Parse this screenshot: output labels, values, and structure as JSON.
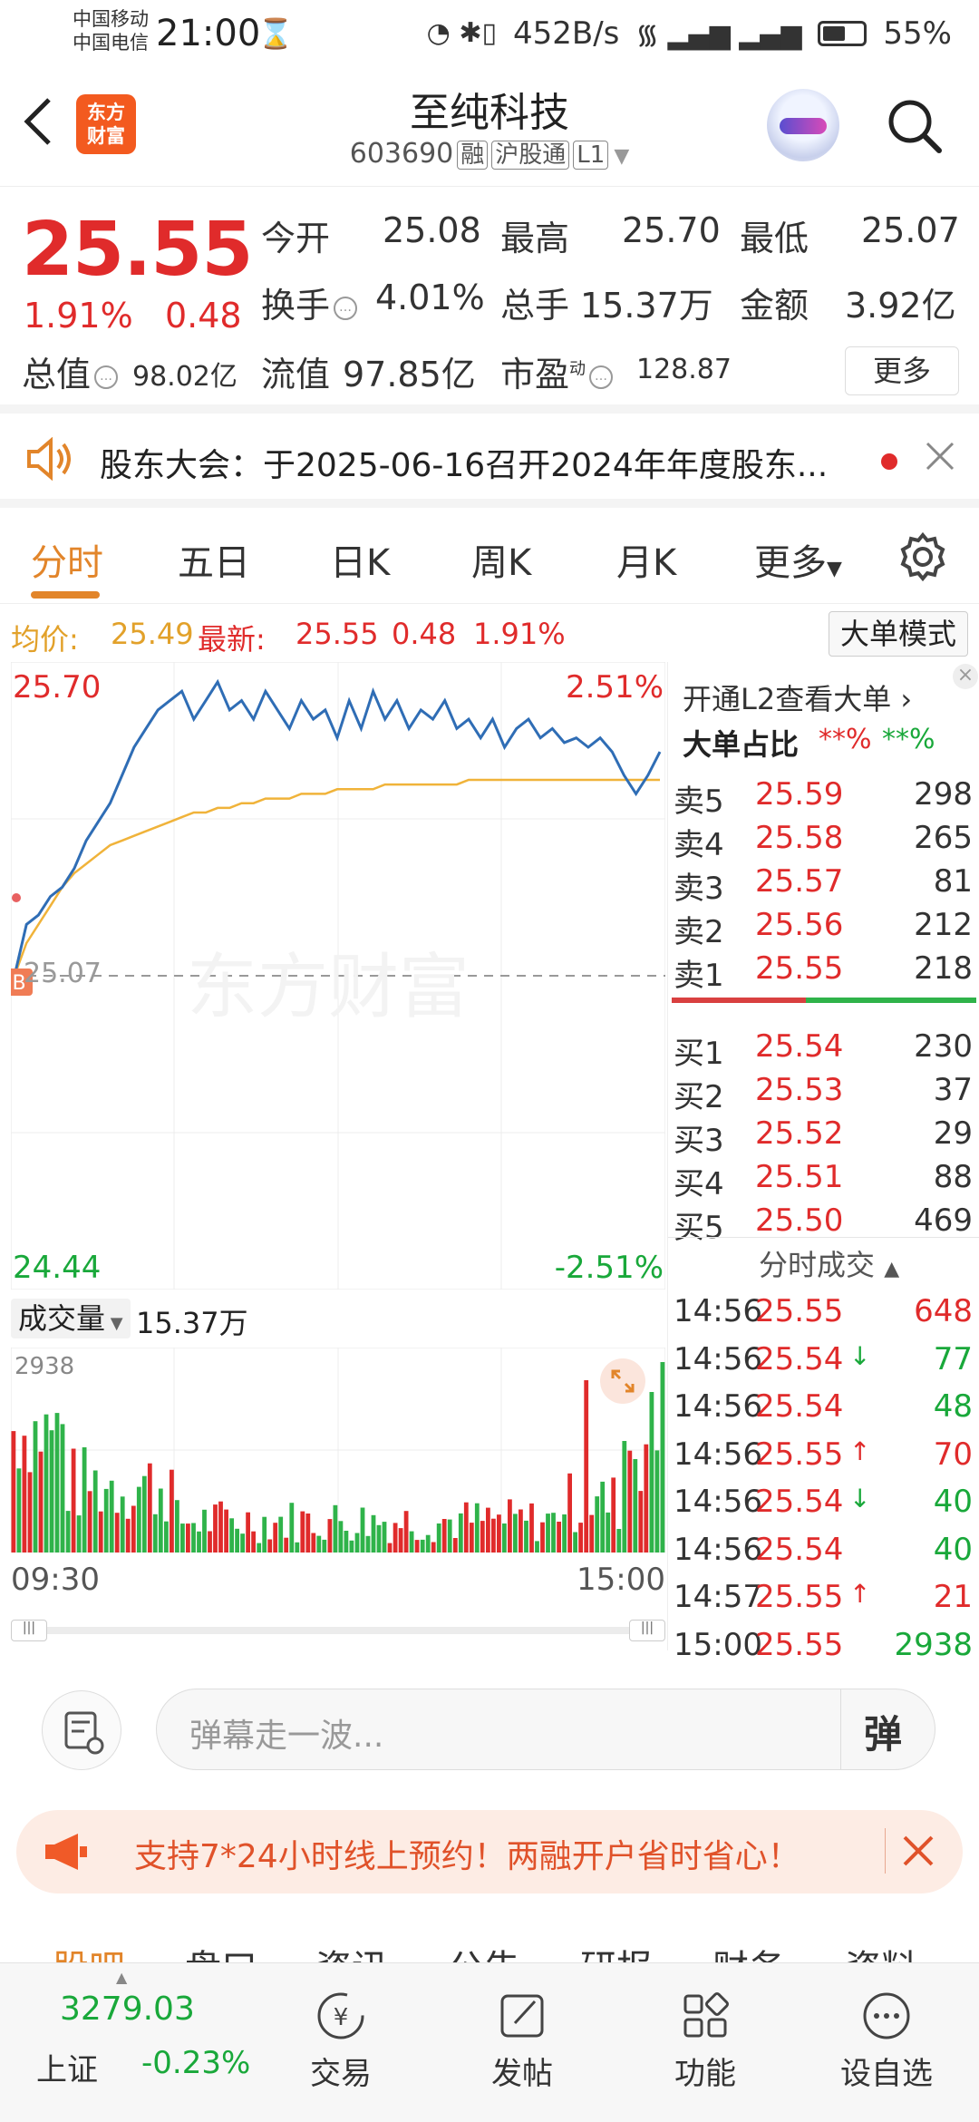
{
  "status_bar": {
    "carrier1": "中国移动",
    "carrier2": "中国电信",
    "time": "21:00",
    "speed": "452B/s",
    "battery": "55%"
  },
  "header": {
    "logo_line1": "东方",
    "logo_line2": "财富",
    "title": "至纯科技",
    "code": "603690",
    "tags": [
      "融",
      "沪股通",
      "L1"
    ]
  },
  "quote": {
    "price": "25.55",
    "pct": "1.91%",
    "change": "0.48",
    "open_label": "今开",
    "open": "25.08",
    "high_label": "最高",
    "high": "25.70",
    "low_label": "最低",
    "low": "25.07",
    "turnover_label": "换手",
    "turnover": "4.01%",
    "volume_label": "总手",
    "volume": "15.37万",
    "amount_label": "金额",
    "amount": "3.92亿",
    "mcap_label": "总值",
    "mcap": "98.02亿",
    "float_label": "流值",
    "float": "97.85亿",
    "pe_label": "市盈",
    "pe_sup": "动",
    "pe": "128.87",
    "more": "更多"
  },
  "notice": {
    "text": "股东大会：于2025-06-16召开2024年年度股东..."
  },
  "tabs": [
    "分时",
    "五日",
    "日K",
    "周K",
    "月K",
    "更多"
  ],
  "avg_line": {
    "avg_label": "均价:",
    "avg": "25.49",
    "latest_label": "最新:",
    "latest": "25.55",
    "change": "0.48",
    "pct": "1.91%",
    "mode_button": "大单模式"
  },
  "chart_labels": {
    "top_price": "25.70",
    "top_pct": "2.51%",
    "bottom_price": "24.44",
    "bottom_pct": "-2.51%",
    "ref_price": "25.07",
    "watermark": "东方财富",
    "vol_selector": "成交量",
    "vol_total": "15.37万",
    "vol_max": "2938",
    "x_start": "09:30",
    "x_end": "15:00"
  },
  "chart_data": {
    "type": "line",
    "x_range": [
      "09:30",
      "15:00"
    ],
    "ylim": [
      24.44,
      25.7
    ],
    "pct_range": [
      "-2.51%",
      "2.51%"
    ],
    "prev_close": 25.07,
    "series": [
      {
        "values": [
          25.07,
          25.18,
          25.2,
          25.24,
          25.26,
          25.3,
          25.36,
          25.4,
          25.44,
          25.5,
          25.56,
          25.6,
          25.64,
          25.66,
          25.68,
          25.62,
          25.66,
          25.7,
          25.64,
          25.66,
          25.62,
          25.68,
          25.64,
          25.6,
          25.66,
          25.62,
          25.64,
          25.58,
          25.66,
          25.6,
          25.68,
          25.62,
          25.66,
          25.6,
          25.64,
          25.62,
          25.66,
          25.6,
          25.62,
          25.58,
          25.62,
          25.56,
          25.6,
          25.62,
          25.58,
          25.6,
          25.57,
          25.58,
          25.56,
          25.58,
          25.55,
          25.5,
          25.46,
          25.5,
          25.55
        ]
      },
      {
        "values": [
          25.07,
          25.14,
          25.18,
          25.22,
          25.26,
          25.29,
          25.31,
          25.33,
          25.35,
          25.36,
          25.37,
          25.38,
          25.39,
          25.4,
          25.41,
          25.42,
          25.42,
          25.43,
          25.43,
          25.44,
          25.44,
          25.45,
          25.45,
          25.45,
          25.46,
          25.46,
          25.46,
          25.47,
          25.47,
          25.47,
          25.47,
          25.48,
          25.48,
          25.48,
          25.48,
          25.48,
          25.48,
          25.48,
          25.49,
          25.49,
          25.49,
          25.49,
          25.49,
          25.49,
          25.49,
          25.49,
          25.49,
          25.49,
          25.49,
          25.49,
          25.49,
          25.49,
          25.49,
          25.49,
          25.49
        ]
      }
    ]
  },
  "panel": {
    "l2_link": "开通L2查看大单",
    "big_ratio_label": "大单占比",
    "big_ratio_red": "**%",
    "big_ratio_green": "**%",
    "asks": [
      {
        "label": "卖5",
        "price": "25.59",
        "vol": "298"
      },
      {
        "label": "卖4",
        "price": "25.58",
        "vol": "265"
      },
      {
        "label": "卖3",
        "price": "25.57",
        "vol": "81"
      },
      {
        "label": "卖2",
        "price": "25.56",
        "vol": "212"
      },
      {
        "label": "卖1",
        "price": "25.55",
        "vol": "218"
      }
    ],
    "bids": [
      {
        "label": "买1",
        "price": "25.54",
        "vol": "230"
      },
      {
        "label": "买2",
        "price": "25.53",
        "vol": "37"
      },
      {
        "label": "买3",
        "price": "25.52",
        "vol": "29"
      },
      {
        "label": "买4",
        "price": "25.51",
        "vol": "88"
      },
      {
        "label": "买5",
        "price": "25.50",
        "vol": "469"
      }
    ],
    "trades_title": "分时成交",
    "trades": [
      {
        "time": "14:56",
        "price": "25.55",
        "arrow": "",
        "vol": "648",
        "color": "red"
      },
      {
        "time": "14:56",
        "price": "25.54",
        "arrow": "↓",
        "vol": "77",
        "color": "green"
      },
      {
        "time": "14:56",
        "price": "25.54",
        "arrow": "",
        "vol": "48",
        "color": "green"
      },
      {
        "time": "14:56",
        "price": "25.55",
        "arrow": "↑",
        "vol": "70",
        "color": "red"
      },
      {
        "time": "14:56",
        "price": "25.54",
        "arrow": "↓",
        "vol": "40",
        "color": "green"
      },
      {
        "time": "14:56",
        "price": "25.54",
        "arrow": "",
        "vol": "40",
        "color": "green"
      },
      {
        "time": "14:57",
        "price": "25.55",
        "arrow": "↑",
        "vol": "21",
        "color": "red"
      },
      {
        "time": "15:00",
        "price": "25.55",
        "arrow": "",
        "vol": "2938",
        "color": "green"
      }
    ]
  },
  "danmu": {
    "placeholder": "弹幕走一波...",
    "button": "弹"
  },
  "promo": {
    "text": "支持7*24小时线上预约！两融开户省时省心！"
  },
  "subtabs": [
    "股吧",
    "盘口",
    "资讯",
    "公告",
    "研报",
    "财务",
    "资料"
  ],
  "bottom_nav": {
    "index_value": "3279.03",
    "index_name": "上证",
    "index_pct": "-0.23%",
    "items": [
      "交易",
      "发帖",
      "功能",
      "设自选"
    ]
  },
  "colors": {
    "up": "#e02b2b",
    "down": "#19a83a",
    "accent": "#e2852a",
    "price_line": "#2f6db5",
    "avg_line": "#f0b33a"
  },
  "icons": [
    "back-icon",
    "search-icon",
    "speaker-icon",
    "close-icon",
    "gear-icon",
    "expand-icon",
    "danmu-settings-icon",
    "megaphone-icon",
    "trade-icon",
    "post-icon",
    "function-icon",
    "more-dots-icon"
  ]
}
